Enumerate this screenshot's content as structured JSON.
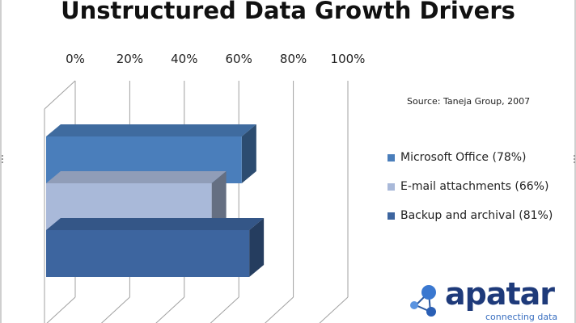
{
  "chart_data": {
    "type": "bar",
    "orientation": "horizontal",
    "title": "Unstructured Data Growth Drivers",
    "x_ticks": [
      "0%",
      "20%",
      "40%",
      "60%",
      "80%",
      "100%"
    ],
    "xlim": [
      0,
      100
    ],
    "grid": true,
    "legend_position": "right",
    "series": [
      {
        "name": "Microsoft Office (78%)",
        "value": 78,
        "color": "#4a7ebb"
      },
      {
        "name": "E-mail attachments (66%)",
        "value": 66,
        "color": "#a9b9d9"
      },
      {
        "name": "Backup and archival (81%)",
        "value": 81,
        "color": "#3d659f"
      }
    ]
  },
  "source_note": "Source: Taneja Group, 2007",
  "logo": {
    "word": "apatar",
    "tagline": "connecting data",
    "color": "#1e3a7a",
    "icon": "molecule-logo-icon"
  }
}
